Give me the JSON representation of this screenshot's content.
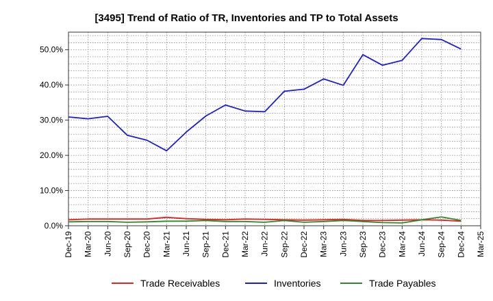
{
  "chart_data": {
    "type": "line",
    "title": "[3495]  Trend of Ratio of TR, Inventories and TP to Total Assets",
    "xlabel": "",
    "ylabel": "",
    "categories": [
      "Dec-19",
      "Mar-20",
      "Jun-20",
      "Sep-20",
      "Dec-20",
      "Mar-21",
      "Jun-21",
      "Sep-21",
      "Dec-21",
      "Mar-22",
      "Jun-22",
      "Sep-22",
      "Dec-22",
      "Mar-23",
      "Jun-23",
      "Sep-23",
      "Dec-23",
      "Mar-24",
      "Jun-24",
      "Sep-24",
      "Dec-24",
      "Mar-25"
    ],
    "ylim": [
      0,
      55
    ],
    "yticks": [
      0,
      10,
      20,
      30,
      40,
      50
    ],
    "ytick_labels": [
      "0.0%",
      "10.0%",
      "20.0%",
      "30.0%",
      "40.0%",
      "50.0%"
    ],
    "grid": true,
    "legend_position": "bottom",
    "series": [
      {
        "name": "Trade Receivables",
        "color": "#e8201e",
        "values": [
          1.7,
          1.9,
          1.9,
          1.9,
          1.9,
          2.4,
          2.0,
          1.8,
          1.7,
          1.9,
          1.8,
          1.7,
          1.6,
          1.7,
          1.8,
          1.5,
          1.5,
          1.6,
          1.7,
          1.6,
          1.3,
          null
        ]
      },
      {
        "name": "Inventories",
        "color": "#1c1cd6",
        "values": [
          30.9,
          30.4,
          31.1,
          25.7,
          24.3,
          21.3,
          26.6,
          31.2,
          34.3,
          32.6,
          32.4,
          38.2,
          38.8,
          41.7,
          39.9,
          48.6,
          45.6,
          47.0,
          53.2,
          52.9,
          50.2,
          null
        ]
      },
      {
        "name": "Trade Payables",
        "color": "#2a8a2a",
        "values": [
          1.1,
          1.2,
          1.2,
          1.0,
          1.1,
          1.3,
          1.3,
          1.5,
          1.2,
          1.2,
          1.0,
          1.5,
          1.0,
          1.2,
          1.5,
          1.2,
          0.9,
          0.8,
          1.7,
          2.5,
          1.5,
          null
        ]
      }
    ]
  }
}
